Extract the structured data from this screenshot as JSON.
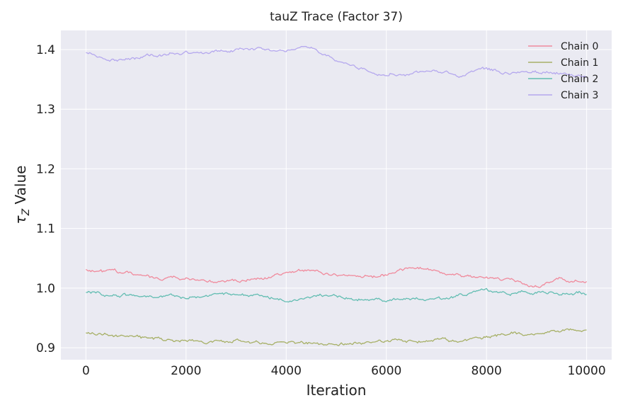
{
  "chart_data": {
    "type": "line",
    "title": "tauZ Trace (Factor 37)",
    "xlabel": "Iteration",
    "ylabel_symbol": "τ",
    "ylabel_subscript": "Z",
    "ylabel_rest": " Value",
    "xlim": [
      -500,
      10500
    ],
    "ylim": [
      0.88,
      1.432
    ],
    "xticks": [
      0,
      2000,
      4000,
      6000,
      8000,
      10000
    ],
    "xtick_labels": [
      "0",
      "2000",
      "4000",
      "6000",
      "8000",
      "10000"
    ],
    "yticks": [
      0.9,
      1.0,
      1.1,
      1.2,
      1.3,
      1.4
    ],
    "ytick_labels": [
      "0.9",
      "1.0",
      "1.1",
      "1.2",
      "1.3",
      "1.4"
    ],
    "grid": true,
    "legend_position": "top-right",
    "x": [
      0,
      500,
      1000,
      1500,
      2000,
      2500,
      3000,
      3500,
      4000,
      4500,
      5000,
      5500,
      6000,
      6500,
      7000,
      7500,
      8000,
      8500,
      9000,
      9500,
      10000
    ],
    "series": [
      {
        "name": "Chain 0",
        "color": "#f08a9c",
        "values": [
          1.032,
          1.027,
          1.021,
          1.019,
          1.015,
          1.012,
          1.013,
          1.016,
          1.024,
          1.03,
          1.02,
          1.021,
          1.022,
          1.035,
          1.03,
          1.019,
          1.018,
          1.012,
          1.005,
          1.013,
          1.01
        ]
      },
      {
        "name": "Chain 1",
        "color": "#a7b067",
        "values": [
          0.925,
          0.922,
          0.917,
          0.915,
          0.91,
          0.912,
          0.912,
          0.908,
          0.91,
          0.908,
          0.906,
          0.91,
          0.912,
          0.913,
          0.915,
          0.91,
          0.92,
          0.924,
          0.922,
          0.93,
          0.928
        ]
      },
      {
        "name": "Chain 2",
        "color": "#63bdb2",
        "values": [
          0.994,
          0.99,
          0.986,
          0.986,
          0.986,
          0.988,
          0.988,
          0.987,
          0.982,
          0.985,
          0.985,
          0.984,
          0.979,
          0.982,
          0.98,
          0.988,
          0.996,
          0.99,
          0.993,
          0.993,
          0.991
        ]
      },
      {
        "name": "Chain 3",
        "color": "#b5a8ee",
        "values": [
          1.395,
          1.383,
          1.387,
          1.39,
          1.397,
          1.393,
          1.4,
          1.403,
          1.397,
          1.4,
          1.382,
          1.368,
          1.358,
          1.362,
          1.367,
          1.357,
          1.367,
          1.363,
          1.364,
          1.36,
          1.352
        ]
      }
    ]
  }
}
